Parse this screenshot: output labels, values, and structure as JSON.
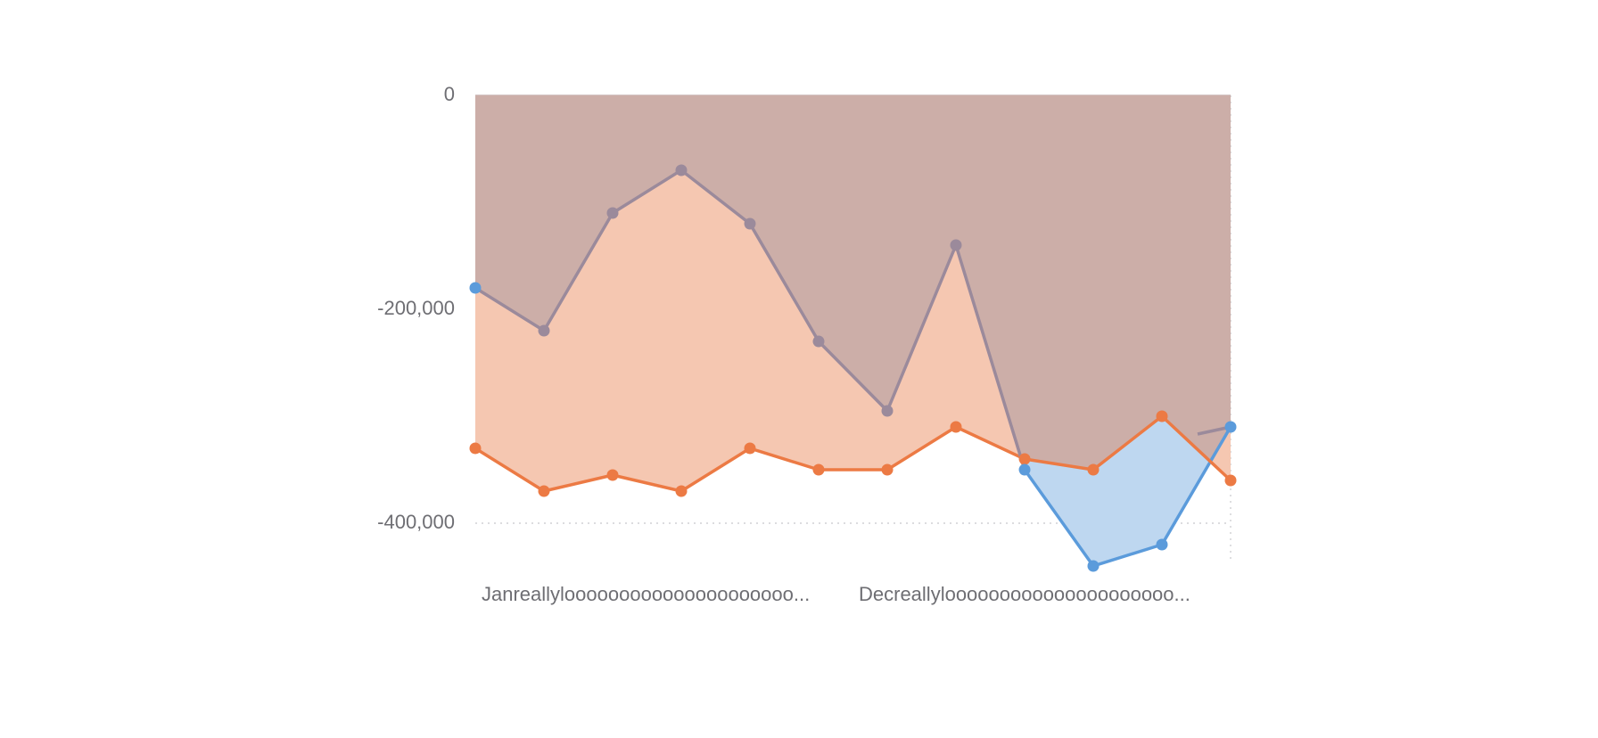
{
  "chart_data": {
    "type": "area",
    "stacked": false,
    "grid": true,
    "legend": "none",
    "ylim": [
      -400000,
      0
    ],
    "y_ticks": [
      {
        "value": 0,
        "label": "0"
      },
      {
        "value": -200000,
        "label": "-200,000"
      },
      {
        "value": -400000,
        "label": "-400,000"
      }
    ],
    "category_labels": [
      "Janreallylooooooooooooooooooooo...",
      "Decreallylooooooooooooooooooooo..."
    ],
    "point_count": 12,
    "series": [
      {
        "color": "#9b8a9b",
        "fill": "#ccaea8",
        "values": [
          -180000,
          -220000,
          -110000,
          -70000,
          -120000,
          -230000,
          -295000,
          -140000,
          -350000,
          -440000,
          -420000,
          -310000
        ]
      },
      {
        "color": "#ec7a44",
        "fill": "#f5c7b1",
        "values": [
          -330000,
          -370000,
          -355000,
          -370000,
          -330000,
          -350000,
          -350000,
          -310000,
          -340000,
          -350000,
          -300000,
          -360000
        ]
      },
      {
        "color": "#5b9bdb",
        "fill": "#bed7f0",
        "values": [
          -180000,
          -220000,
          -110000,
          -70000,
          -120000,
          -230000,
          -295000,
          -140000,
          -350000,
          -440000,
          -420000,
          -310000
        ]
      }
    ]
  }
}
